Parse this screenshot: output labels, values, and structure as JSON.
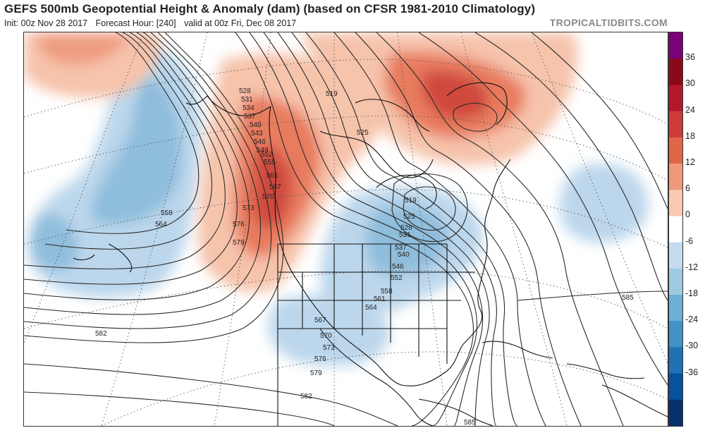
{
  "header": {
    "title": "GEFS 500mb Geopotential Height & Anomaly (dam) (based on CFSR 1981-2010 Climatology)",
    "init": "Init: 00z Nov 28 2017",
    "forecast_hour": "Forecast Hour: [240]",
    "valid": "valid at 00z Fri, Dec 08 2017",
    "brand": "TROPICALTIDBITS.COM"
  },
  "colorbar": {
    "labels": [
      "36",
      "30",
      "24",
      "18",
      "12",
      "6",
      "0",
      "-6",
      "-12",
      "-18",
      "-24",
      "-30",
      "-36"
    ],
    "colors": [
      "#7a0177",
      "#8b0a1a",
      "#b2182b",
      "#cc3a3a",
      "#e0664a",
      "#f0987a",
      "#f8c8b0",
      "#ffffff",
      "#c6dbef",
      "#9ecae1",
      "#6baed6",
      "#4292c6",
      "#2171b5",
      "#08519c",
      "#08306b"
    ]
  },
  "contour_labels": [
    {
      "text": "528",
      "name": "label-528-a"
    },
    {
      "text": "531",
      "name": "label-531-a"
    },
    {
      "text": "534",
      "name": "label-534-a"
    },
    {
      "text": "537",
      "name": "label-537-a"
    },
    {
      "text": "540",
      "name": "label-540-a"
    },
    {
      "text": "543",
      "name": "label-543-a"
    },
    {
      "text": "546",
      "name": "label-546-a"
    },
    {
      "text": "549",
      "name": "label-549-a"
    },
    {
      "text": "552",
      "name": "label-552-a"
    },
    {
      "text": "555",
      "name": "label-555-a"
    },
    {
      "text": "561",
      "name": "label-561-a"
    },
    {
      "text": "567",
      "name": "label-567-a"
    },
    {
      "text": "570",
      "name": "label-570-a"
    },
    {
      "text": "573",
      "name": "label-573-a"
    },
    {
      "text": "576",
      "name": "label-576-a"
    },
    {
      "text": "579",
      "name": "label-579-a"
    },
    {
      "text": "558",
      "name": "label-558-pac"
    },
    {
      "text": "564",
      "name": "label-564-pac"
    },
    {
      "text": "582",
      "name": "label-582-pac"
    },
    {
      "text": "519",
      "name": "label-519"
    },
    {
      "text": "525",
      "name": "label-525-a"
    },
    {
      "text": "519",
      "name": "label-519-b"
    },
    {
      "text": "525",
      "name": "label-525-b"
    },
    {
      "text": "528",
      "name": "label-528-b"
    },
    {
      "text": "531",
      "name": "label-531-b"
    },
    {
      "text": "537",
      "name": "label-537-b"
    },
    {
      "text": "540",
      "name": "label-540-b"
    },
    {
      "text": "546",
      "name": "label-546-b"
    },
    {
      "text": "552",
      "name": "label-552-b"
    },
    {
      "text": "558",
      "name": "label-558-b"
    },
    {
      "text": "561",
      "name": "label-561-b"
    },
    {
      "text": "564",
      "name": "label-564-b"
    },
    {
      "text": "567",
      "name": "label-567-b"
    },
    {
      "text": "570",
      "name": "label-570-b"
    },
    {
      "text": "573",
      "name": "label-573-b"
    },
    {
      "text": "576",
      "name": "label-576-b"
    },
    {
      "text": "579",
      "name": "label-579-b"
    },
    {
      "text": "582",
      "name": "label-582-b"
    },
    {
      "text": "585",
      "name": "label-585-a"
    },
    {
      "text": "585",
      "name": "label-585-b"
    }
  ]
}
